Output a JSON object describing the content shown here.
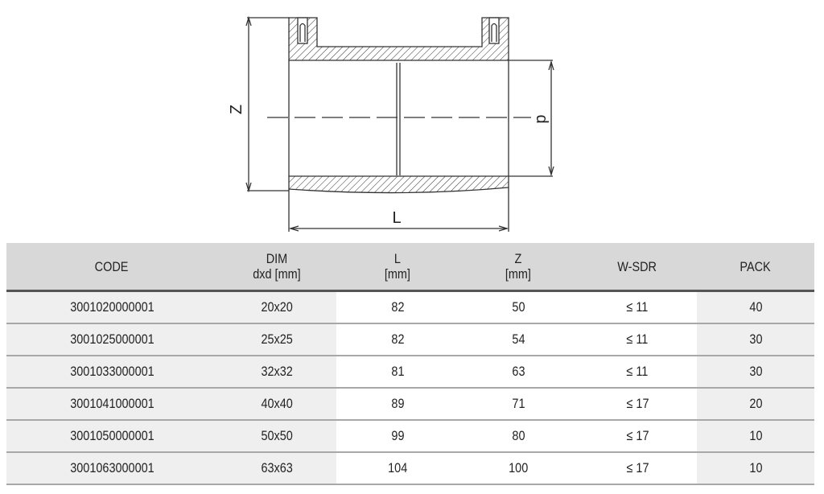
{
  "drawing": {
    "labels": {
      "z": "Z",
      "d": "d",
      "l": "L"
    }
  },
  "table": {
    "headers": [
      {
        "line1": "CODE",
        "line2": ""
      },
      {
        "line1": "DIM",
        "line2": "dxd [mm]"
      },
      {
        "line1": "L",
        "line2": "[mm]"
      },
      {
        "line1": "Z",
        "line2": "[mm]"
      },
      {
        "line1": "W-SDR",
        "line2": ""
      },
      {
        "line1": "PACK",
        "line2": ""
      }
    ],
    "rows": [
      [
        "3001020000001",
        "20x20",
        "82",
        "50",
        "≤ 11",
        "40"
      ],
      [
        "3001025000001",
        "25x25",
        "82",
        "54",
        "≤ 11",
        "30"
      ],
      [
        "3001033000001",
        "32x32",
        "81",
        "63",
        "≤ 11",
        "30"
      ],
      [
        "3001041000001",
        "40x40",
        "89",
        "71",
        "≤ 17",
        "20"
      ],
      [
        "3001050000001",
        "50x50",
        "99",
        "80",
        "≤ 17",
        "10"
      ],
      [
        "3001063000001",
        "63x63",
        "104",
        "100",
        "≤ 17",
        "10"
      ]
    ]
  },
  "colors": {
    "header_bg": "#d8d8d8",
    "shaded_col": "#efefef",
    "header_rule": "#555555"
  }
}
